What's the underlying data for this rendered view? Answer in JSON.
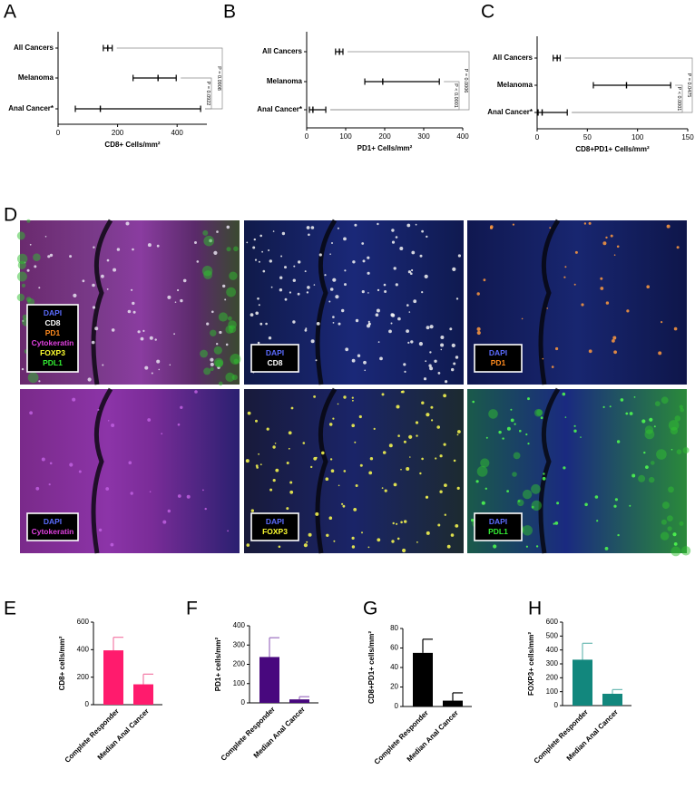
{
  "chart_data": [
    {
      "type": "errorbar",
      "panel": "A",
      "x_label": "CD8+ Cells/mm²",
      "categories": [
        "All Cancers",
        "Melanoma",
        "Anal Cancer*"
      ],
      "values": [
        167,
        336,
        142
      ],
      "lower": [
        152,
        252,
        58
      ],
      "upper": [
        182,
        397,
        479
      ],
      "xlim": [
        0,
        500
      ],
      "xticks": [
        0,
        200,
        400
      ],
      "annotations": [
        "P = 0.0908",
        "P = 0.0922"
      ]
    },
    {
      "type": "errorbar",
      "panel": "B",
      "x_label": "PD1+ Cells/mm²",
      "categories": [
        "All Cancers",
        "Melanoma",
        "Anal Cancer*"
      ],
      "values": [
        84,
        195,
        16
      ],
      "lower": [
        74,
        149,
        7
      ],
      "upper": [
        93,
        340,
        49
      ],
      "xlim": [
        0,
        400
      ],
      "xticks": [
        0,
        100,
        200,
        300,
        400
      ],
      "annotations": [
        "P = 0.0006",
        "P < 0.0001"
      ]
    },
    {
      "type": "errorbar",
      "panel": "C",
      "x_label": "CD8+PD1+ Cells/mm²",
      "categories": [
        "All Cancers",
        "Melanoma",
        "Anal Cancer*"
      ],
      "values": [
        20,
        89,
        5
      ],
      "lower": [
        16,
        56,
        1
      ],
      "upper": [
        23,
        133,
        30
      ],
      "xlim": [
        0,
        150
      ],
      "xticks": [
        0,
        50,
        100,
        150
      ],
      "annotations": [
        "P = 0.0475",
        "P < 0.0001"
      ]
    },
    {
      "type": "bar",
      "panel": "E",
      "y_label": "CD8+ cells/mm²",
      "categories": [
        "Complete Responder",
        "Median Anal Cancer"
      ],
      "values": [
        395,
        148
      ],
      "errors": [
        95,
        74
      ],
      "color": "#ff1b6d",
      "error_color": "#f47aa6",
      "ylim": [
        0,
        600
      ],
      "yticks": [
        0,
        200,
        400,
        600
      ]
    },
    {
      "type": "bar",
      "panel": "F",
      "y_label": "PD1+ cells/mm²",
      "categories": [
        "Complete Responder",
        "Median Anal Cancer"
      ],
      "values": [
        238,
        18
      ],
      "errors": [
        100,
        14
      ],
      "color": "#48087e",
      "error_color": "#9c6fc0",
      "ylim": [
        0,
        400
      ],
      "yticks": [
        0,
        100,
        200,
        300,
        400
      ]
    },
    {
      "type": "bar",
      "panel": "G",
      "y_label": "CD8+PD1+ cells/mm²",
      "categories": [
        "Complete Responder",
        "Median Anal Cancer"
      ],
      "values": [
        55,
        6
      ],
      "errors": [
        14,
        8
      ],
      "color": "#000000",
      "error_color": "#000000",
      "ylim": [
        0,
        80
      ],
      "yticks": [
        0,
        20,
        40,
        60,
        80
      ]
    },
    {
      "type": "bar",
      "panel": "H",
      "y_label": "FOXP3+ cells/mm²",
      "categories": [
        "Complete Responder",
        "Median Anal Cancer"
      ],
      "values": [
        330,
        85
      ],
      "errors": [
        118,
        30
      ],
      "color": "#12877d",
      "error_color": "#6cbab3",
      "ylim": [
        0,
        600
      ],
      "yticks": [
        0,
        100,
        200,
        300,
        400,
        500,
        600
      ]
    }
  ],
  "panel_d": {
    "panel": "D",
    "images": [
      {
        "legend": [
          {
            "text": "DAPI",
            "color": "#5b6cff"
          },
          {
            "text": "CD8",
            "color": "#ffffff"
          },
          {
            "text": "PD1",
            "color": "#ff8a1e"
          },
          {
            "text": "Cytokeratin",
            "color": "#e040e0"
          },
          {
            "text": "FOXP3",
            "color": "#ffff30"
          },
          {
            "text": "PDL1",
            "color": "#33ee33"
          }
        ]
      },
      {
        "legend": [
          {
            "text": "DAPI",
            "color": "#5b6cff"
          },
          {
            "text": "CD8",
            "color": "#ffffff"
          }
        ]
      },
      {
        "legend": [
          {
            "text": "DAPI",
            "color": "#5b6cff"
          },
          {
            "text": "PD1",
            "color": "#ff8a1e"
          }
        ]
      },
      {
        "legend": [
          {
            "text": "DAPI",
            "color": "#5b6cff"
          },
          {
            "text": "Cytokeratin",
            "color": "#e040e0"
          }
        ]
      },
      {
        "legend": [
          {
            "text": "DAPI",
            "color": "#5b6cff"
          },
          {
            "text": "FOXP3",
            "color": "#ffff30"
          }
        ]
      },
      {
        "legend": [
          {
            "text": "DAPI",
            "color": "#5b6cff"
          },
          {
            "text": "PDL1",
            "color": "#33ee33"
          }
        ]
      }
    ]
  }
}
